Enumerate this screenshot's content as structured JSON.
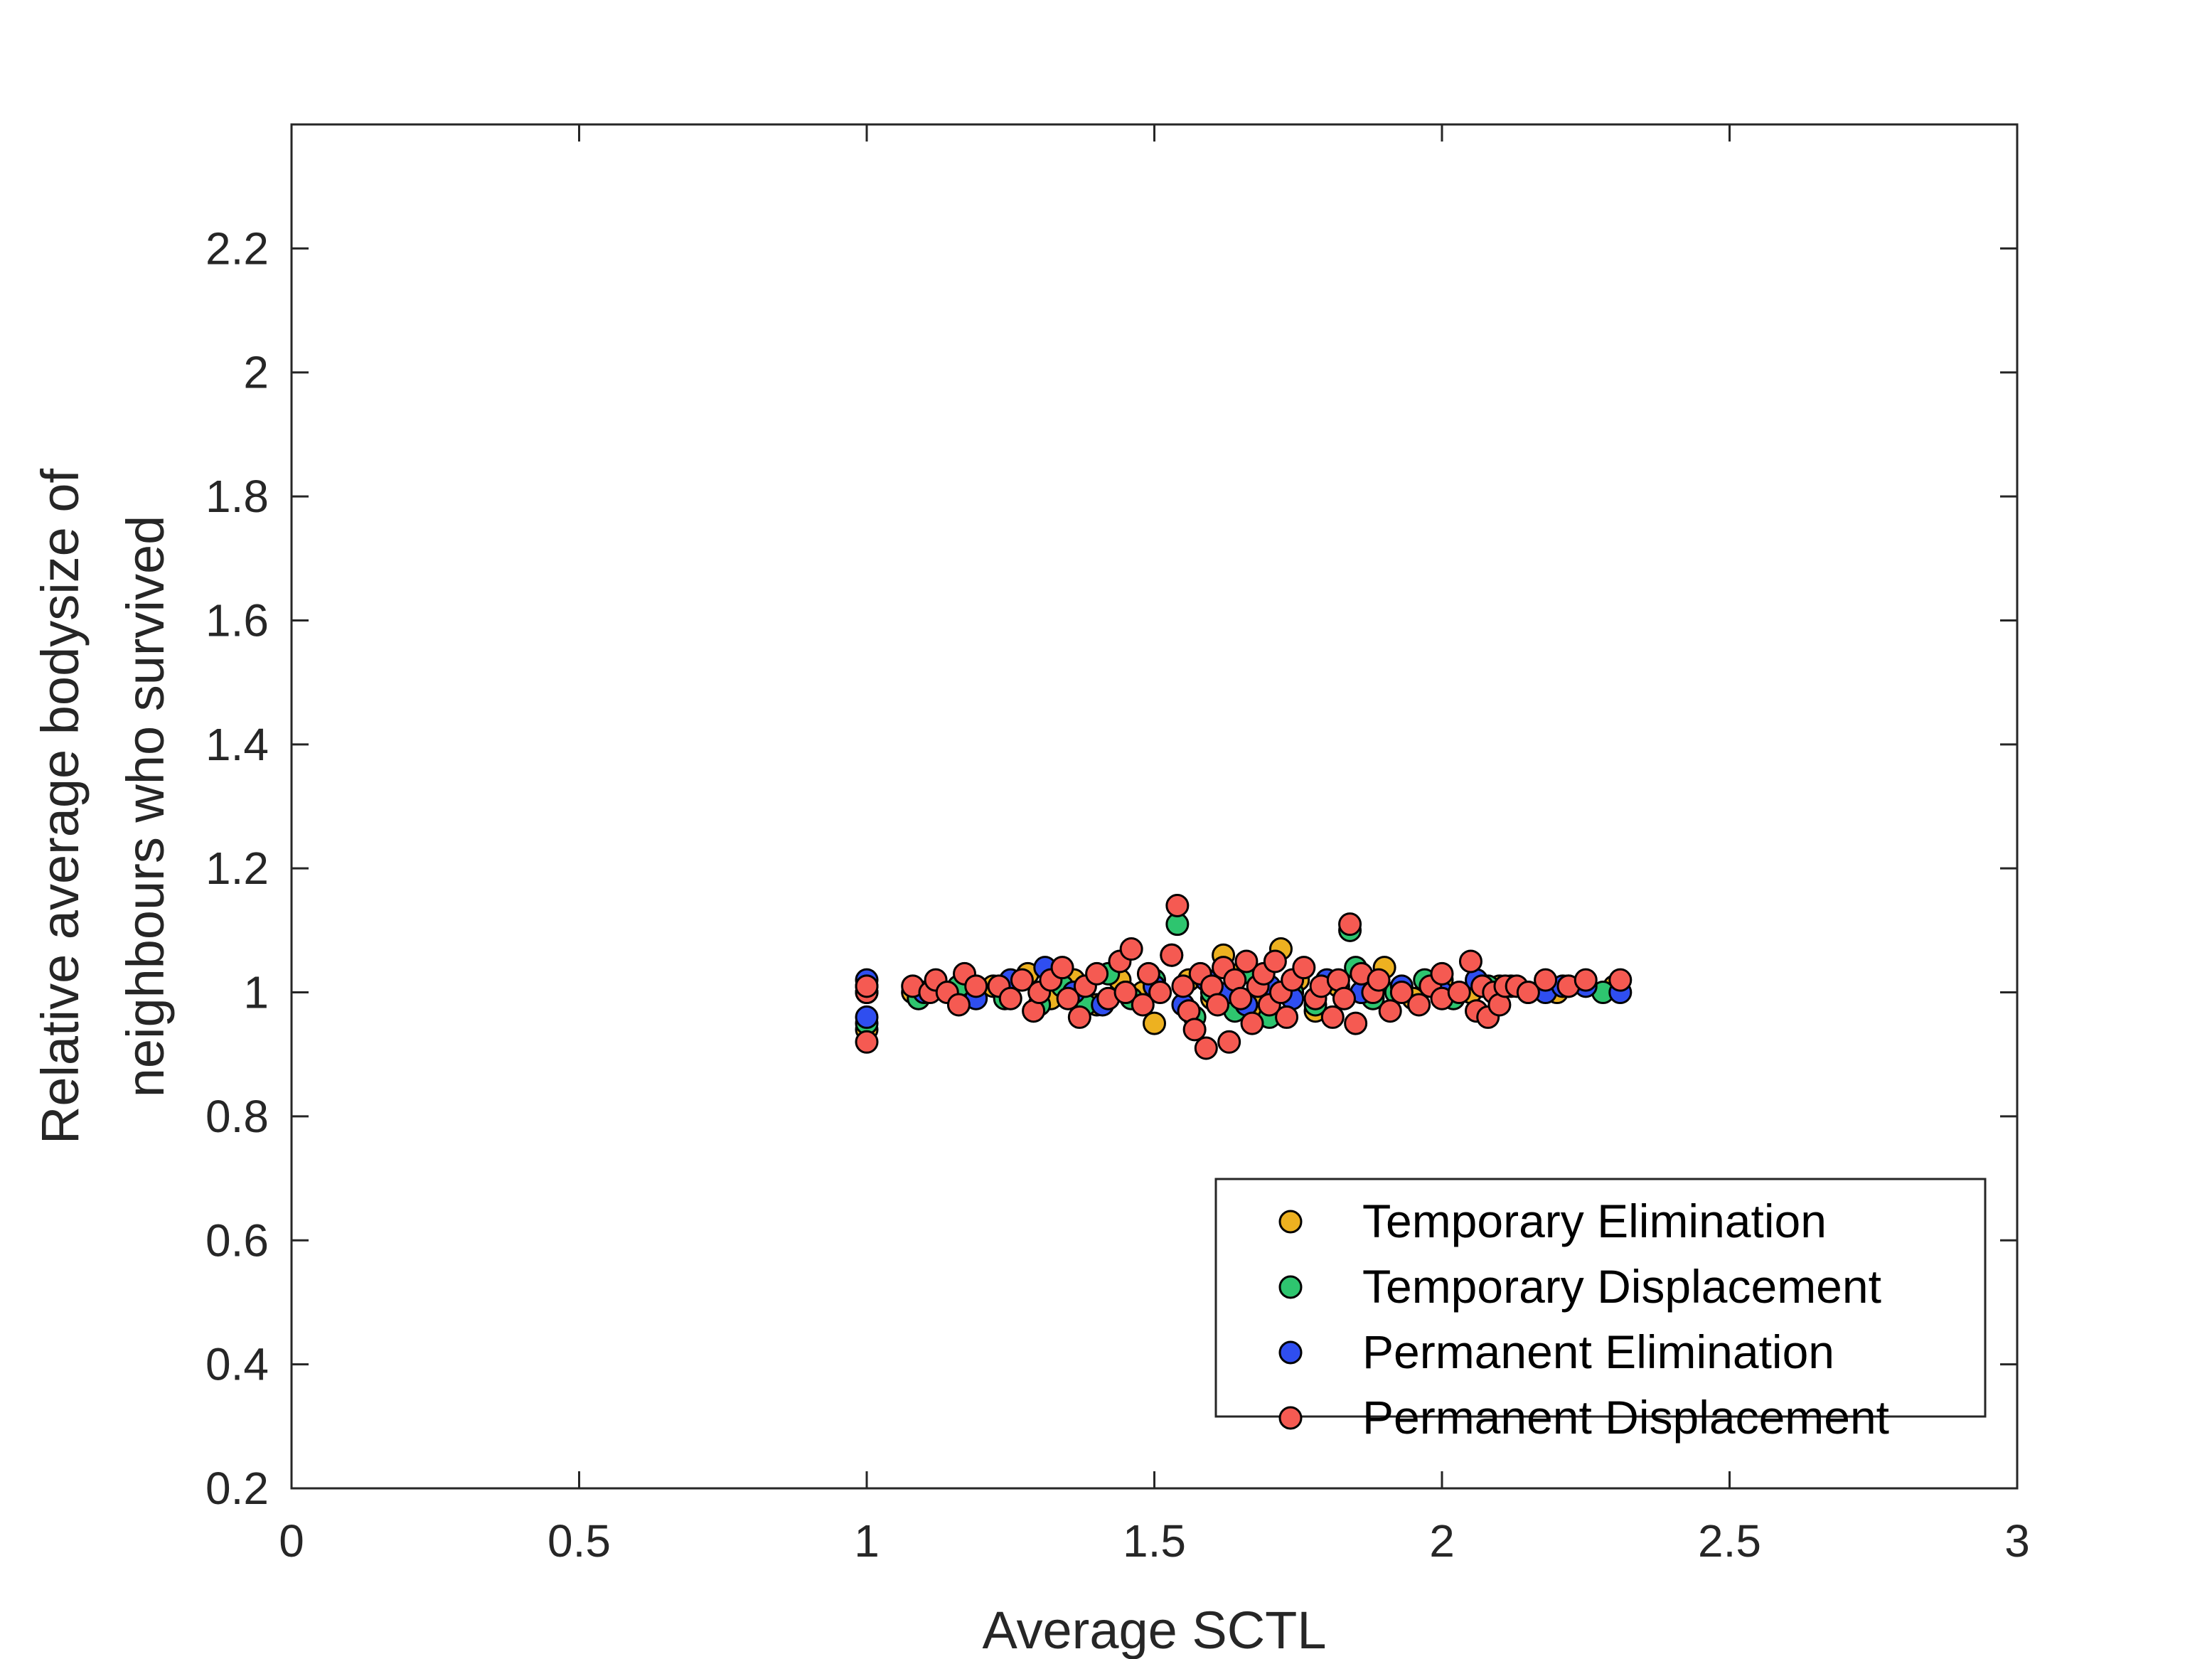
{
  "chart_data": {
    "type": "scatter",
    "xlabel": "Average SCTL",
    "ylabel": [
      "Relative average bodysize of",
      "neighbours who survived"
    ],
    "xlim": [
      0,
      3
    ],
    "ylim": [
      0.2,
      2.4
    ],
    "xticks": [
      0,
      0.5,
      1,
      1.5,
      2,
      2.5,
      3
    ],
    "xtick_labels": [
      "0",
      "0.5",
      "1",
      "1.5",
      "2",
      "2.5",
      "3"
    ],
    "yticks": [
      0.2,
      0.4,
      0.6,
      0.8,
      1.0,
      1.2,
      1.4,
      1.6,
      1.8,
      2.0,
      2.2
    ],
    "ytick_labels": [
      "0.2",
      "0.4",
      "0.6",
      "0.8",
      "1",
      "1.2",
      "1.4",
      "1.6",
      "1.8",
      "2",
      "2.2"
    ],
    "grid": false,
    "legend_position": "bottom-right",
    "series": [
      {
        "name": "Temporary Elimination",
        "color": "#edb120",
        "points": [
          [
            1.0,
            0.94
          ],
          [
            1.0,
            1.0
          ],
          [
            1.08,
            1.0
          ],
          [
            1.15,
            1.0
          ],
          [
            1.22,
            1.01
          ],
          [
            1.28,
            1.03
          ],
          [
            1.32,
            0.99
          ],
          [
            1.36,
            1.02
          ],
          [
            1.4,
            0.98
          ],
          [
            1.44,
            1.02
          ],
          [
            1.48,
            1.0
          ],
          [
            1.5,
            0.95
          ],
          [
            1.53,
            1.06
          ],
          [
            1.56,
            1.02
          ],
          [
            1.6,
            0.99
          ],
          [
            1.62,
            1.06
          ],
          [
            1.65,
            1.03
          ],
          [
            1.68,
            0.98
          ],
          [
            1.72,
            1.07
          ],
          [
            1.75,
            1.02
          ],
          [
            1.78,
            0.97
          ],
          [
            1.82,
            1.01
          ],
          [
            1.86,
            1.0
          ],
          [
            1.9,
            1.04
          ],
          [
            1.95,
            0.99
          ],
          [
            2.0,
            1.02
          ],
          [
            2.05,
            1.0
          ],
          [
            2.1,
            1.01
          ],
          [
            2.2,
            1.0
          ],
          [
            2.3,
            1.01
          ]
        ]
      },
      {
        "name": "Temporary Displacement",
        "color": "#2ec56f",
        "points": [
          [
            1.0,
            0.95
          ],
          [
            1.0,
            1.01
          ],
          [
            1.09,
            0.99
          ],
          [
            1.16,
            1.01
          ],
          [
            1.24,
            0.99
          ],
          [
            1.3,
            0.98
          ],
          [
            1.34,
            1.01
          ],
          [
            1.38,
            0.98
          ],
          [
            1.42,
            1.03
          ],
          [
            1.46,
            0.99
          ],
          [
            1.5,
            1.02
          ],
          [
            1.54,
            1.11
          ],
          [
            1.57,
            0.96
          ],
          [
            1.6,
            1.0
          ],
          [
            1.64,
            0.97
          ],
          [
            1.67,
            1.03
          ],
          [
            1.7,
            0.96
          ],
          [
            1.74,
            1.0
          ],
          [
            1.78,
            0.98
          ],
          [
            1.84,
            1.1
          ],
          [
            1.85,
            1.04
          ],
          [
            1.88,
            0.99
          ],
          [
            1.92,
            1.0
          ],
          [
            1.97,
            1.02
          ],
          [
            2.02,
            0.99
          ],
          [
            2.08,
            1.01
          ],
          [
            2.15,
            1.0
          ],
          [
            2.22,
            1.01
          ],
          [
            2.28,
            1.0
          ]
        ]
      },
      {
        "name": "Permanent Elimination",
        "color": "#2f4ef0",
        "points": [
          [
            1.0,
            0.96
          ],
          [
            1.0,
            1.02
          ],
          [
            1.1,
            1.0
          ],
          [
            1.19,
            0.99
          ],
          [
            1.25,
            1.02
          ],
          [
            1.31,
            1.04
          ],
          [
            1.36,
            1.0
          ],
          [
            1.41,
            0.98
          ],
          [
            1.45,
            1.0
          ],
          [
            1.5,
            1.01
          ],
          [
            1.55,
            0.98
          ],
          [
            1.59,
            1.02
          ],
          [
            1.63,
            1.0
          ],
          [
            1.66,
            0.98
          ],
          [
            1.7,
            1.01
          ],
          [
            1.74,
            0.99
          ],
          [
            1.8,
            1.02
          ],
          [
            1.86,
            1.0
          ],
          [
            1.93,
            1.01
          ],
          [
            2.0,
            1.0
          ],
          [
            2.06,
            1.02
          ],
          [
            2.12,
            1.01
          ],
          [
            2.18,
            1.0
          ],
          [
            2.21,
            1.01
          ],
          [
            2.25,
            1.01
          ],
          [
            2.31,
            1.0
          ]
        ]
      },
      {
        "name": "Permanent Displacement",
        "color": "#f55a52",
        "points": [
          [
            1.0,
            0.92
          ],
          [
            1.0,
            1.0
          ],
          [
            1.0,
            1.01
          ],
          [
            1.08,
            1.01
          ],
          [
            1.11,
            1.0
          ],
          [
            1.12,
            1.02
          ],
          [
            1.14,
            1.0
          ],
          [
            1.16,
            0.98
          ],
          [
            1.17,
            1.03
          ],
          [
            1.19,
            1.01
          ],
          [
            1.23,
            1.01
          ],
          [
            1.25,
            0.99
          ],
          [
            1.27,
            1.02
          ],
          [
            1.29,
            0.97
          ],
          [
            1.3,
            1.0
          ],
          [
            1.32,
            1.02
          ],
          [
            1.34,
            1.04
          ],
          [
            1.35,
            0.99
          ],
          [
            1.37,
            0.96
          ],
          [
            1.38,
            1.01
          ],
          [
            1.4,
            1.03
          ],
          [
            1.42,
            0.99
          ],
          [
            1.44,
            1.05
          ],
          [
            1.45,
            1.0
          ],
          [
            1.46,
            1.07
          ],
          [
            1.48,
            0.98
          ],
          [
            1.49,
            1.03
          ],
          [
            1.51,
            1.0
          ],
          [
            1.53,
            1.06
          ],
          [
            1.54,
            1.14
          ],
          [
            1.55,
            1.01
          ],
          [
            1.56,
            0.97
          ],
          [
            1.57,
            0.94
          ],
          [
            1.58,
            1.03
          ],
          [
            1.59,
            0.91
          ],
          [
            1.6,
            1.01
          ],
          [
            1.61,
            0.98
          ],
          [
            1.62,
            1.04
          ],
          [
            1.63,
            0.92
          ],
          [
            1.64,
            1.02
          ],
          [
            1.65,
            0.99
          ],
          [
            1.66,
            1.05
          ],
          [
            1.67,
            0.95
          ],
          [
            1.68,
            1.01
          ],
          [
            1.69,
            1.03
          ],
          [
            1.7,
            0.98
          ],
          [
            1.71,
            1.05
          ],
          [
            1.72,
            1.0
          ],
          [
            1.73,
            0.96
          ],
          [
            1.74,
            1.02
          ],
          [
            1.76,
            1.04
          ],
          [
            1.78,
            0.99
          ],
          [
            1.79,
            1.01
          ],
          [
            1.81,
            0.96
          ],
          [
            1.82,
            1.02
          ],
          [
            1.83,
            0.99
          ],
          [
            1.84,
            1.11
          ],
          [
            1.85,
            0.95
          ],
          [
            1.86,
            1.03
          ],
          [
            1.88,
            1.0
          ],
          [
            1.89,
            1.02
          ],
          [
            1.91,
            0.97
          ],
          [
            1.93,
            1.0
          ],
          [
            1.96,
            0.98
          ],
          [
            1.98,
            1.01
          ],
          [
            2.0,
            1.03
          ],
          [
            2.0,
            0.99
          ],
          [
            2.03,
            1.0
          ],
          [
            2.05,
            1.05
          ],
          [
            2.06,
            0.97
          ],
          [
            2.07,
            1.01
          ],
          [
            2.08,
            0.96
          ],
          [
            2.09,
            1.0
          ],
          [
            2.1,
            0.98
          ],
          [
            2.11,
            1.01
          ],
          [
            2.13,
            1.01
          ],
          [
            2.15,
            1.0
          ],
          [
            2.18,
            1.02
          ],
          [
            2.22,
            1.01
          ],
          [
            2.25,
            1.02
          ],
          [
            2.31,
            1.02
          ]
        ]
      }
    ]
  }
}
